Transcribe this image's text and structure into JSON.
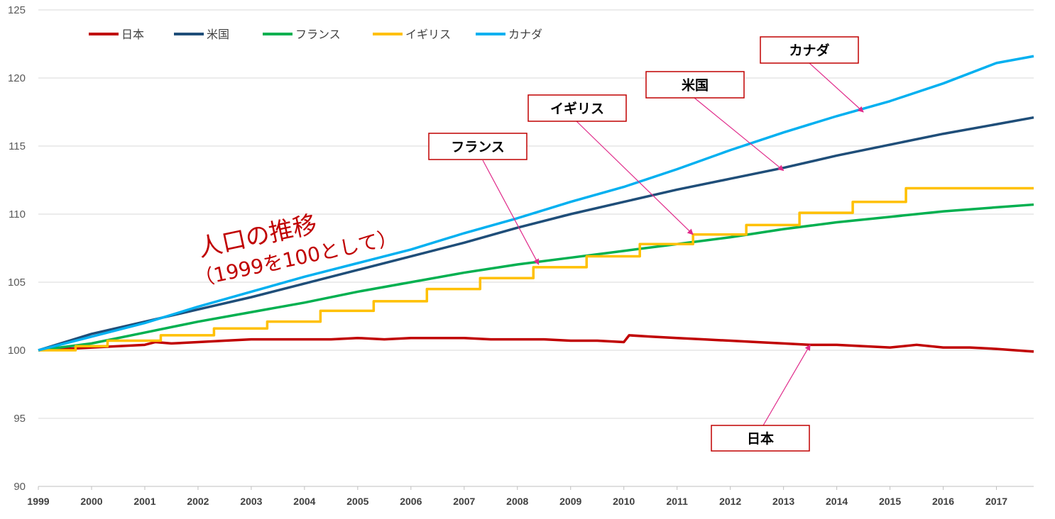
{
  "chart_data": {
    "type": "line",
    "title": "人口の推移",
    "subtitle": "（1999を100として）",
    "xlabel": "",
    "ylabel": "",
    "ylim": [
      90,
      125
    ],
    "yticks": [
      90,
      95,
      100,
      105,
      110,
      115,
      120,
      125
    ],
    "xlim": [
      1999,
      2017.7
    ],
    "categories": [
      "1999",
      "2000",
      "2001",
      "2002",
      "2003",
      "2004",
      "2005",
      "2006",
      "2007",
      "2008",
      "2009",
      "2010",
      "2011",
      "2012",
      "2013",
      "2014",
      "2015",
      "2016",
      "2017"
    ],
    "grid": "horizontal",
    "legend_position": "top-left",
    "series": [
      {
        "name": "日本",
        "color": "#c00000",
        "x": [
          1999,
          1999.5,
          2000,
          2000.5,
          2001,
          2001.2,
          2001.5,
          2002,
          2002.5,
          2003,
          2003.5,
          2004,
          2004.5,
          2005,
          2005.5,
          2006,
          2006.5,
          2007,
          2007.5,
          2008,
          2008.5,
          2009,
          2009.5,
          2010,
          2010.1,
          2010.5,
          2011,
          2011.5,
          2012,
          2012.5,
          2013,
          2013.5,
          2014,
          2014.5,
          2015,
          2015.5,
          2016,
          2016.5,
          2017,
          2017.7
        ],
        "y": [
          100.0,
          100.1,
          100.2,
          100.3,
          100.4,
          100.6,
          100.5,
          100.6,
          100.7,
          100.8,
          100.8,
          100.8,
          100.8,
          100.9,
          100.8,
          100.9,
          100.9,
          100.9,
          100.8,
          100.8,
          100.8,
          100.7,
          100.7,
          100.6,
          101.1,
          101.0,
          100.9,
          100.8,
          100.7,
          100.6,
          100.5,
          100.4,
          100.4,
          100.3,
          100.2,
          100.4,
          100.2,
          100.2,
          100.1,
          99.9
        ]
      },
      {
        "name": "米国",
        "color": "#1f4e79",
        "x": [
          1999,
          2000,
          2001,
          2002,
          2003,
          2004,
          2005,
          2006,
          2007,
          2008,
          2009,
          2010,
          2011,
          2012,
          2013,
          2014,
          2015,
          2016,
          2017,
          2017.7
        ],
        "y": [
          100.0,
          101.2,
          102.1,
          103.0,
          103.9,
          104.9,
          105.9,
          106.9,
          107.9,
          109.0,
          110.0,
          110.9,
          111.8,
          112.6,
          113.4,
          114.3,
          115.1,
          115.9,
          116.6,
          117.1
        ]
      },
      {
        "name": "フランス",
        "color": "#00b050",
        "x": [
          1999,
          2000,
          2001,
          2002,
          2003,
          2004,
          2005,
          2006,
          2007,
          2008,
          2009,
          2010,
          2011,
          2012,
          2013,
          2014,
          2015,
          2016,
          2017,
          2017.7
        ],
        "y": [
          100.0,
          100.5,
          101.3,
          102.1,
          102.8,
          103.5,
          104.3,
          105.0,
          105.7,
          106.3,
          106.8,
          107.3,
          107.8,
          108.3,
          108.9,
          109.4,
          109.8,
          110.2,
          110.5,
          110.7
        ]
      },
      {
        "name": "イギリス",
        "color": "#ffc000",
        "step": true,
        "x": [
          1999,
          1999.7,
          2000.3,
          2001.3,
          2002.3,
          2003.3,
          2004.3,
          2005.3,
          2006.3,
          2007.3,
          2008.3,
          2009.3,
          2010.3,
          2011.3,
          2012.3,
          2013.3,
          2014.3,
          2015.3,
          2017.7
        ],
        "y": [
          100.0,
          100.3,
          100.7,
          101.1,
          101.6,
          102.1,
          102.9,
          103.6,
          104.5,
          105.3,
          106.1,
          106.9,
          107.8,
          108.5,
          109.2,
          110.1,
          110.9,
          111.9,
          111.9
        ]
      },
      {
        "name": "カナダ",
        "color": "#00b0f0",
        "x": [
          1999,
          2000,
          2001,
          2002,
          2003,
          2004,
          2005,
          2006,
          2007,
          2008,
          2009,
          2010,
          2011,
          2012,
          2013,
          2014,
          2015,
          2016,
          2017,
          2017.7
        ],
        "y": [
          100.0,
          101.0,
          102.0,
          103.2,
          104.3,
          105.4,
          106.4,
          107.4,
          108.6,
          109.7,
          110.9,
          112.0,
          113.3,
          114.7,
          116.0,
          117.2,
          118.3,
          119.6,
          121.1,
          121.6
        ]
      }
    ],
    "annotations": [
      {
        "text": "日本",
        "target": [
          2013.5,
          100.4
        ]
      },
      {
        "text": "米国",
        "target": [
          2013.0,
          113.2
        ]
      },
      {
        "text": "フランス",
        "target": [
          2008.4,
          106.3
        ]
      },
      {
        "text": "イギリス",
        "target": [
          2011.3,
          108.5
        ]
      },
      {
        "text": "カナダ",
        "target": [
          2014.5,
          117.5
        ]
      }
    ]
  }
}
